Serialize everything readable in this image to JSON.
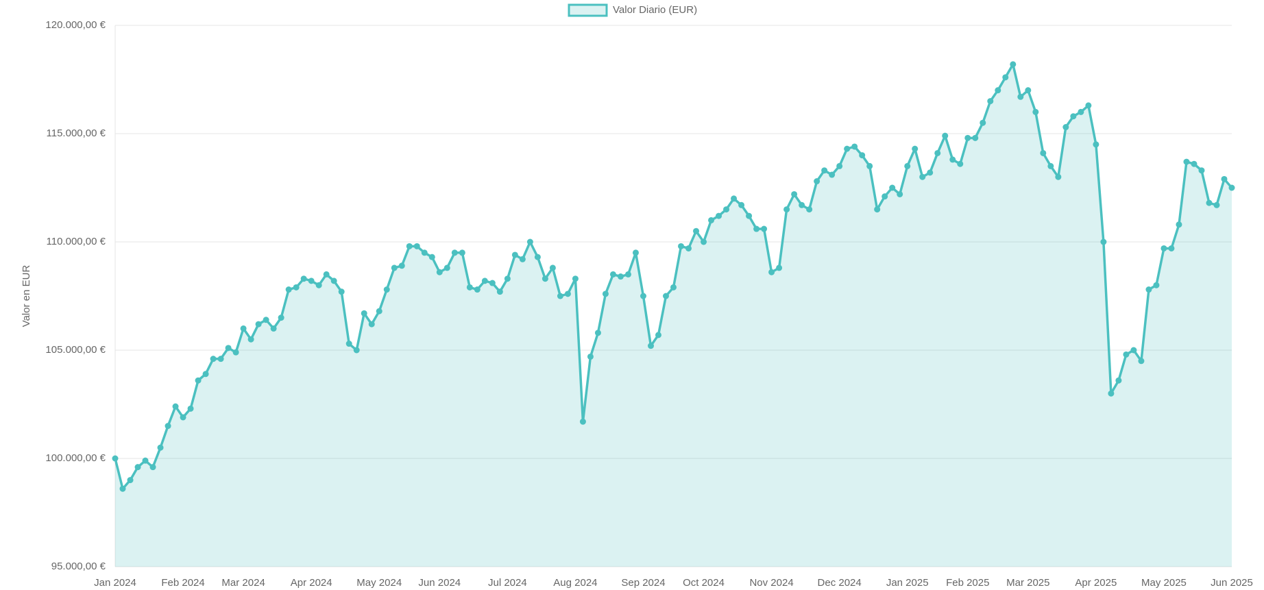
{
  "chart_data": {
    "type": "line",
    "y_label": "Valor en EUR",
    "legend_position": "top",
    "grid": true,
    "fill": true,
    "categories": [
      "Jan 2024",
      null,
      null,
      null,
      null,
      null,
      null,
      null,
      null,
      "Feb 2024",
      null,
      null,
      null,
      null,
      null,
      null,
      null,
      "Mar 2024",
      null,
      null,
      null,
      null,
      null,
      null,
      null,
      null,
      "Apr 2024",
      null,
      null,
      null,
      null,
      null,
      null,
      null,
      null,
      "May 2024",
      null,
      null,
      null,
      null,
      null,
      null,
      null,
      "Jun 2024",
      null,
      null,
      null,
      null,
      null,
      null,
      null,
      null,
      "Jul 2024",
      null,
      null,
      null,
      null,
      null,
      null,
      null,
      null,
      "Aug 2024",
      null,
      null,
      null,
      null,
      null,
      null,
      null,
      null,
      "Sep 2024",
      null,
      null,
      null,
      null,
      null,
      null,
      null,
      "Oct 2024",
      null,
      null,
      null,
      null,
      null,
      null,
      null,
      null,
      "Nov 2024",
      null,
      null,
      null,
      null,
      null,
      null,
      null,
      null,
      "Dec 2024",
      null,
      null,
      null,
      null,
      null,
      null,
      null,
      null,
      "Jan 2025",
      null,
      null,
      null,
      null,
      null,
      null,
      null,
      "Feb 2025",
      null,
      null,
      null,
      null,
      null,
      null,
      null,
      "Mar 2025",
      null,
      null,
      null,
      null,
      null,
      null,
      null,
      null,
      "Apr 2025",
      null,
      null,
      null,
      null,
      null,
      null,
      null,
      null,
      "May 2025",
      null,
      null,
      null,
      null,
      null,
      null,
      null,
      null,
      "Jun 2025"
    ],
    "series": [
      {
        "name": "Valor Diario (EUR)",
        "color": "#4bc0c0",
        "fill_color": "rgba(75,192,192,0.2)",
        "values": [
          100000,
          98600,
          99000,
          99600,
          99900,
          99600,
          100500,
          101500,
          102400,
          101900,
          102300,
          103600,
          103900,
          104600,
          104600,
          105100,
          104900,
          106000,
          105500,
          106200,
          106400,
          106000,
          106500,
          107800,
          107900,
          108300,
          108200,
          108000,
          108500,
          108200,
          107700,
          105300,
          105000,
          106700,
          106200,
          106800,
          107800,
          108800,
          108900,
          109800,
          109800,
          109500,
          109300,
          108600,
          108800,
          109500,
          109500,
          107900,
          107800,
          108200,
          108100,
          107700,
          108300,
          109400,
          109200,
          110000,
          109300,
          108300,
          108800,
          107500,
          107600,
          108300,
          101700,
          104700,
          105800,
          107600,
          108500,
          108400,
          108500,
          109500,
          107500,
          105200,
          105700,
          107500,
          107900,
          109800,
          109700,
          110500,
          110000,
          111000,
          111200,
          111500,
          112000,
          111700,
          111200,
          110600,
          110600,
          108600,
          108800,
          111500,
          112200,
          111700,
          111500,
          112800,
          113300,
          113100,
          113500,
          114300,
          114400,
          114000,
          113500,
          111500,
          112100,
          112500,
          112200,
          113500,
          114300,
          113000,
          113200,
          114100,
          114900,
          113800,
          113600,
          114800,
          114800,
          115500,
          116500,
          117000,
          117600,
          118200,
          116700,
          117000,
          116000,
          114100,
          113500,
          113000,
          115300,
          115800,
          116000,
          116300,
          114500,
          110000,
          103000,
          103600,
          104800,
          105000,
          104500,
          107800,
          108000,
          109700,
          109700,
          110800,
          113700,
          113600,
          113300,
          111800,
          111700,
          112900,
          112500
        ]
      }
    ],
    "ylim": [
      95000,
      120000
    ],
    "yticks": [
      {
        "value": 95000,
        "label": "95.000,00 €"
      },
      {
        "value": 100000,
        "label": "100.000,00 €"
      },
      {
        "value": 105000,
        "label": "105.000,00 €"
      },
      {
        "value": 110000,
        "label": "110.000,00 €"
      },
      {
        "value": 115000,
        "label": "115.000,00 €"
      },
      {
        "value": 120000,
        "label": "120.000,00 €"
      }
    ]
  }
}
